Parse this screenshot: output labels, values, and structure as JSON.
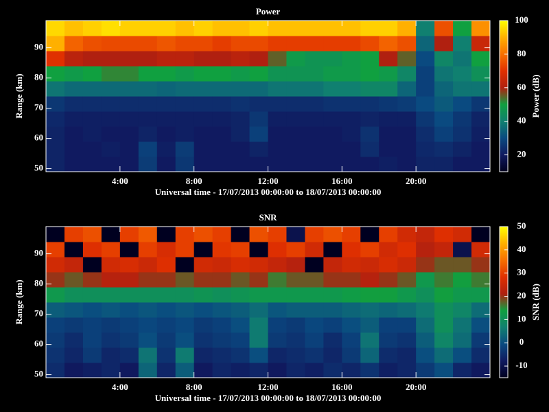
{
  "chart_data": [
    {
      "type": "heatmap",
      "title": "Power",
      "xlabel": "Universal time - 17/07/2013 00:00:00 to 18/07/2013 00:00:00",
      "ylabel": "Range (km)",
      "colorbar_label": "Power (dB)",
      "x": [
        0.5,
        1.5,
        2.5,
        3.5,
        4.5,
        5.5,
        6.5,
        7.5,
        8.5,
        9.5,
        10.5,
        11.5,
        12.5,
        13.5,
        14.5,
        15.5,
        16.5,
        17.5,
        18.5,
        19.5,
        20.5,
        21.5,
        22.5,
        23.5
      ],
      "y": [
        51.5,
        56.5,
        61.5,
        66.5,
        71.5,
        76.5,
        81.5,
        86.5,
        91.5,
        96.5
      ],
      "values": [
        [
          22,
          20,
          20,
          20,
          20,
          27,
          20,
          26,
          20,
          20,
          20,
          20,
          20,
          20,
          20,
          20,
          20,
          20,
          21,
          20,
          22,
          22,
          20,
          20
        ],
        [
          22,
          20,
          20,
          21,
          20,
          28,
          21,
          27,
          20,
          20,
          20,
          22,
          20,
          20,
          20,
          20,
          20,
          24,
          20,
          20,
          23,
          24,
          22,
          20
        ],
        [
          22,
          20,
          21,
          20,
          20,
          22,
          20,
          21,
          20,
          20,
          22,
          28,
          20,
          20,
          20,
          20,
          21,
          25,
          20,
          20,
          24,
          28,
          25,
          21
        ],
        [
          23,
          21,
          21,
          21,
          21,
          21,
          21,
          21,
          21,
          21,
          22,
          26,
          21,
          21,
          21,
          21,
          21,
          22,
          21,
          21,
          26,
          30,
          26,
          22
        ],
        [
          26,
          24,
          24,
          24,
          24,
          24,
          24,
          24,
          24,
          24,
          25,
          24,
          24,
          24,
          24,
          25,
          25,
          25,
          26,
          27,
          30,
          33,
          30,
          26
        ],
        [
          38,
          36,
          36,
          36,
          36,
          36,
          35,
          36,
          36,
          36,
          36,
          36,
          38,
          38,
          38,
          40,
          40,
          42,
          42,
          35,
          28,
          35,
          38,
          38
        ],
        [
          50,
          48,
          50,
          52,
          52,
          50,
          50,
          48,
          50,
          50,
          48,
          50,
          46,
          46,
          46,
          48,
          48,
          50,
          48,
          42,
          28,
          38,
          40,
          45
        ],
        [
          70,
          62,
          60,
          60,
          60,
          60,
          62,
          62,
          60,
          60,
          62,
          60,
          55,
          48,
          46,
          46,
          48,
          50,
          60,
          55,
          30,
          42,
          38,
          50
        ],
        [
          90,
          78,
          75,
          74,
          74,
          74,
          76,
          74,
          74,
          72,
          74,
          74,
          72,
          72,
          72,
          72,
          72,
          74,
          78,
          75,
          35,
          60,
          40,
          65
        ],
        [
          95,
          92,
          94,
          96,
          94,
          94,
          94,
          92,
          94,
          92,
          92,
          94,
          92,
          92,
          92,
          92,
          92,
          94,
          94,
          90,
          40,
          75,
          50,
          85
        ]
      ],
      "xlim": [
        0,
        24
      ],
      "xticks": [
        {
          "value": 4,
          "label": "4:00"
        },
        {
          "value": 8,
          "label": "8:00"
        },
        {
          "value": 12,
          "label": "12:00"
        },
        {
          "value": 16,
          "label": "16:00"
        },
        {
          "value": 20,
          "label": "20:00"
        }
      ],
      "ylim": [
        49,
        99
      ],
      "yticks": [
        50,
        60,
        70,
        80,
        90
      ],
      "zlim": [
        10,
        100
      ],
      "zticks": [
        20,
        40,
        60,
        80,
        100
      ],
      "colormap": [
        "#000020",
        "#101a60",
        "#0a4a80",
        "#108070",
        "#10a040",
        "#b02010",
        "#e03000",
        "#f87000",
        "#ffb000",
        "#ffff00"
      ]
    },
    {
      "type": "heatmap",
      "title": "SNR",
      "xlabel": "Universal time - 17/07/2013 00:00:00 to 18/07/2013 00:00:00",
      "ylabel": "Range (km)",
      "colorbar_label": "SNR (dB)",
      "x": [
        0.5,
        1.5,
        2.5,
        3.5,
        4.5,
        5.5,
        6.5,
        7.5,
        8.5,
        9.5,
        10.5,
        11.5,
        12.5,
        13.5,
        14.5,
        15.5,
        16.5,
        17.5,
        18.5,
        19.5,
        20.5,
        21.5,
        22.5,
        23.5
      ],
      "y": [
        51.5,
        56.5,
        61.5,
        66.5,
        71.5,
        76.5,
        81.5,
        86.5,
        91.5,
        96.5
      ],
      "values": [
        [
          -5,
          -8,
          -7,
          -6,
          -8,
          3,
          -6,
          2,
          -8,
          -6,
          -7,
          -6,
          -8,
          -6,
          -7,
          -5,
          -6,
          -4,
          -7,
          -6,
          -3,
          0,
          -6,
          -8
        ],
        [
          -4,
          -6,
          -3,
          -6,
          -5,
          5,
          -4,
          6,
          -6,
          -5,
          -4,
          0,
          -6,
          -5,
          -4,
          -6,
          -3,
          3,
          -5,
          -6,
          0,
          4,
          0,
          -5
        ],
        [
          -3,
          -5,
          -2,
          -4,
          -3,
          0,
          -3,
          0,
          -4,
          -3,
          -2,
          6,
          -3,
          -4,
          -2,
          -5,
          -2,
          5,
          -3,
          -4,
          2,
          8,
          4,
          -3
        ],
        [
          -2,
          -3,
          -2,
          -3,
          -2,
          -1,
          -2,
          -1,
          -3,
          -2,
          0,
          6,
          -2,
          -3,
          -1,
          -2,
          0,
          2,
          -2,
          -2,
          4,
          10,
          5,
          0
        ],
        [
          2,
          1,
          0,
          1,
          0,
          1,
          0,
          1,
          0,
          1,
          2,
          4,
          1,
          2,
          2,
          2,
          3,
          4,
          3,
          4,
          6,
          10,
          8,
          4
        ],
        [
          12,
          10,
          10,
          10,
          10,
          10,
          10,
          10,
          11,
          10,
          11,
          12,
          12,
          12,
          12,
          12,
          13,
          14,
          14,
          12,
          10,
          14,
          12,
          12
        ],
        [
          20,
          18,
          20,
          22,
          22,
          20,
          20,
          18,
          20,
          20,
          18,
          20,
          16,
          18,
          18,
          20,
          20,
          22,
          20,
          18,
          12,
          16,
          14,
          16
        ],
        [
          26,
          24,
          -15,
          26,
          27,
          25,
          28,
          -15,
          26,
          25,
          27,
          26,
          24,
          22,
          -15,
          24,
          26,
          25,
          27,
          25,
          20,
          18,
          18,
          20
        ],
        [
          30,
          -15,
          28,
          30,
          -15,
          30,
          27,
          30,
          -15,
          29,
          30,
          -15,
          28,
          30,
          26,
          -15,
          28,
          30,
          26,
          28,
          22,
          24,
          -10,
          26
        ],
        [
          -15,
          30,
          32,
          -15,
          30,
          33,
          -15,
          30,
          32,
          30,
          -15,
          32,
          30,
          -10,
          30,
          32,
          30,
          -15,
          30,
          26,
          24,
          28,
          26,
          -15
        ]
      ],
      "xlim": [
        0,
        24
      ],
      "xticks": [
        {
          "value": 4,
          "label": "4:00"
        },
        {
          "value": 8,
          "label": "8:00"
        },
        {
          "value": 12,
          "label": "12:00"
        },
        {
          "value": 16,
          "label": "16:00"
        },
        {
          "value": 20,
          "label": "20:00"
        }
      ],
      "ylim": [
        49,
        99
      ],
      "yticks": [
        50,
        60,
        70,
        80,
        90
      ],
      "zlim": [
        -15,
        50
      ],
      "zticks": [
        -10,
        0,
        10,
        20,
        30,
        40,
        50
      ],
      "colormap": [
        "#000020",
        "#101a60",
        "#0a4a80",
        "#108070",
        "#10a040",
        "#b02010",
        "#e03000",
        "#f87000",
        "#ffb000",
        "#ffff00"
      ]
    }
  ]
}
